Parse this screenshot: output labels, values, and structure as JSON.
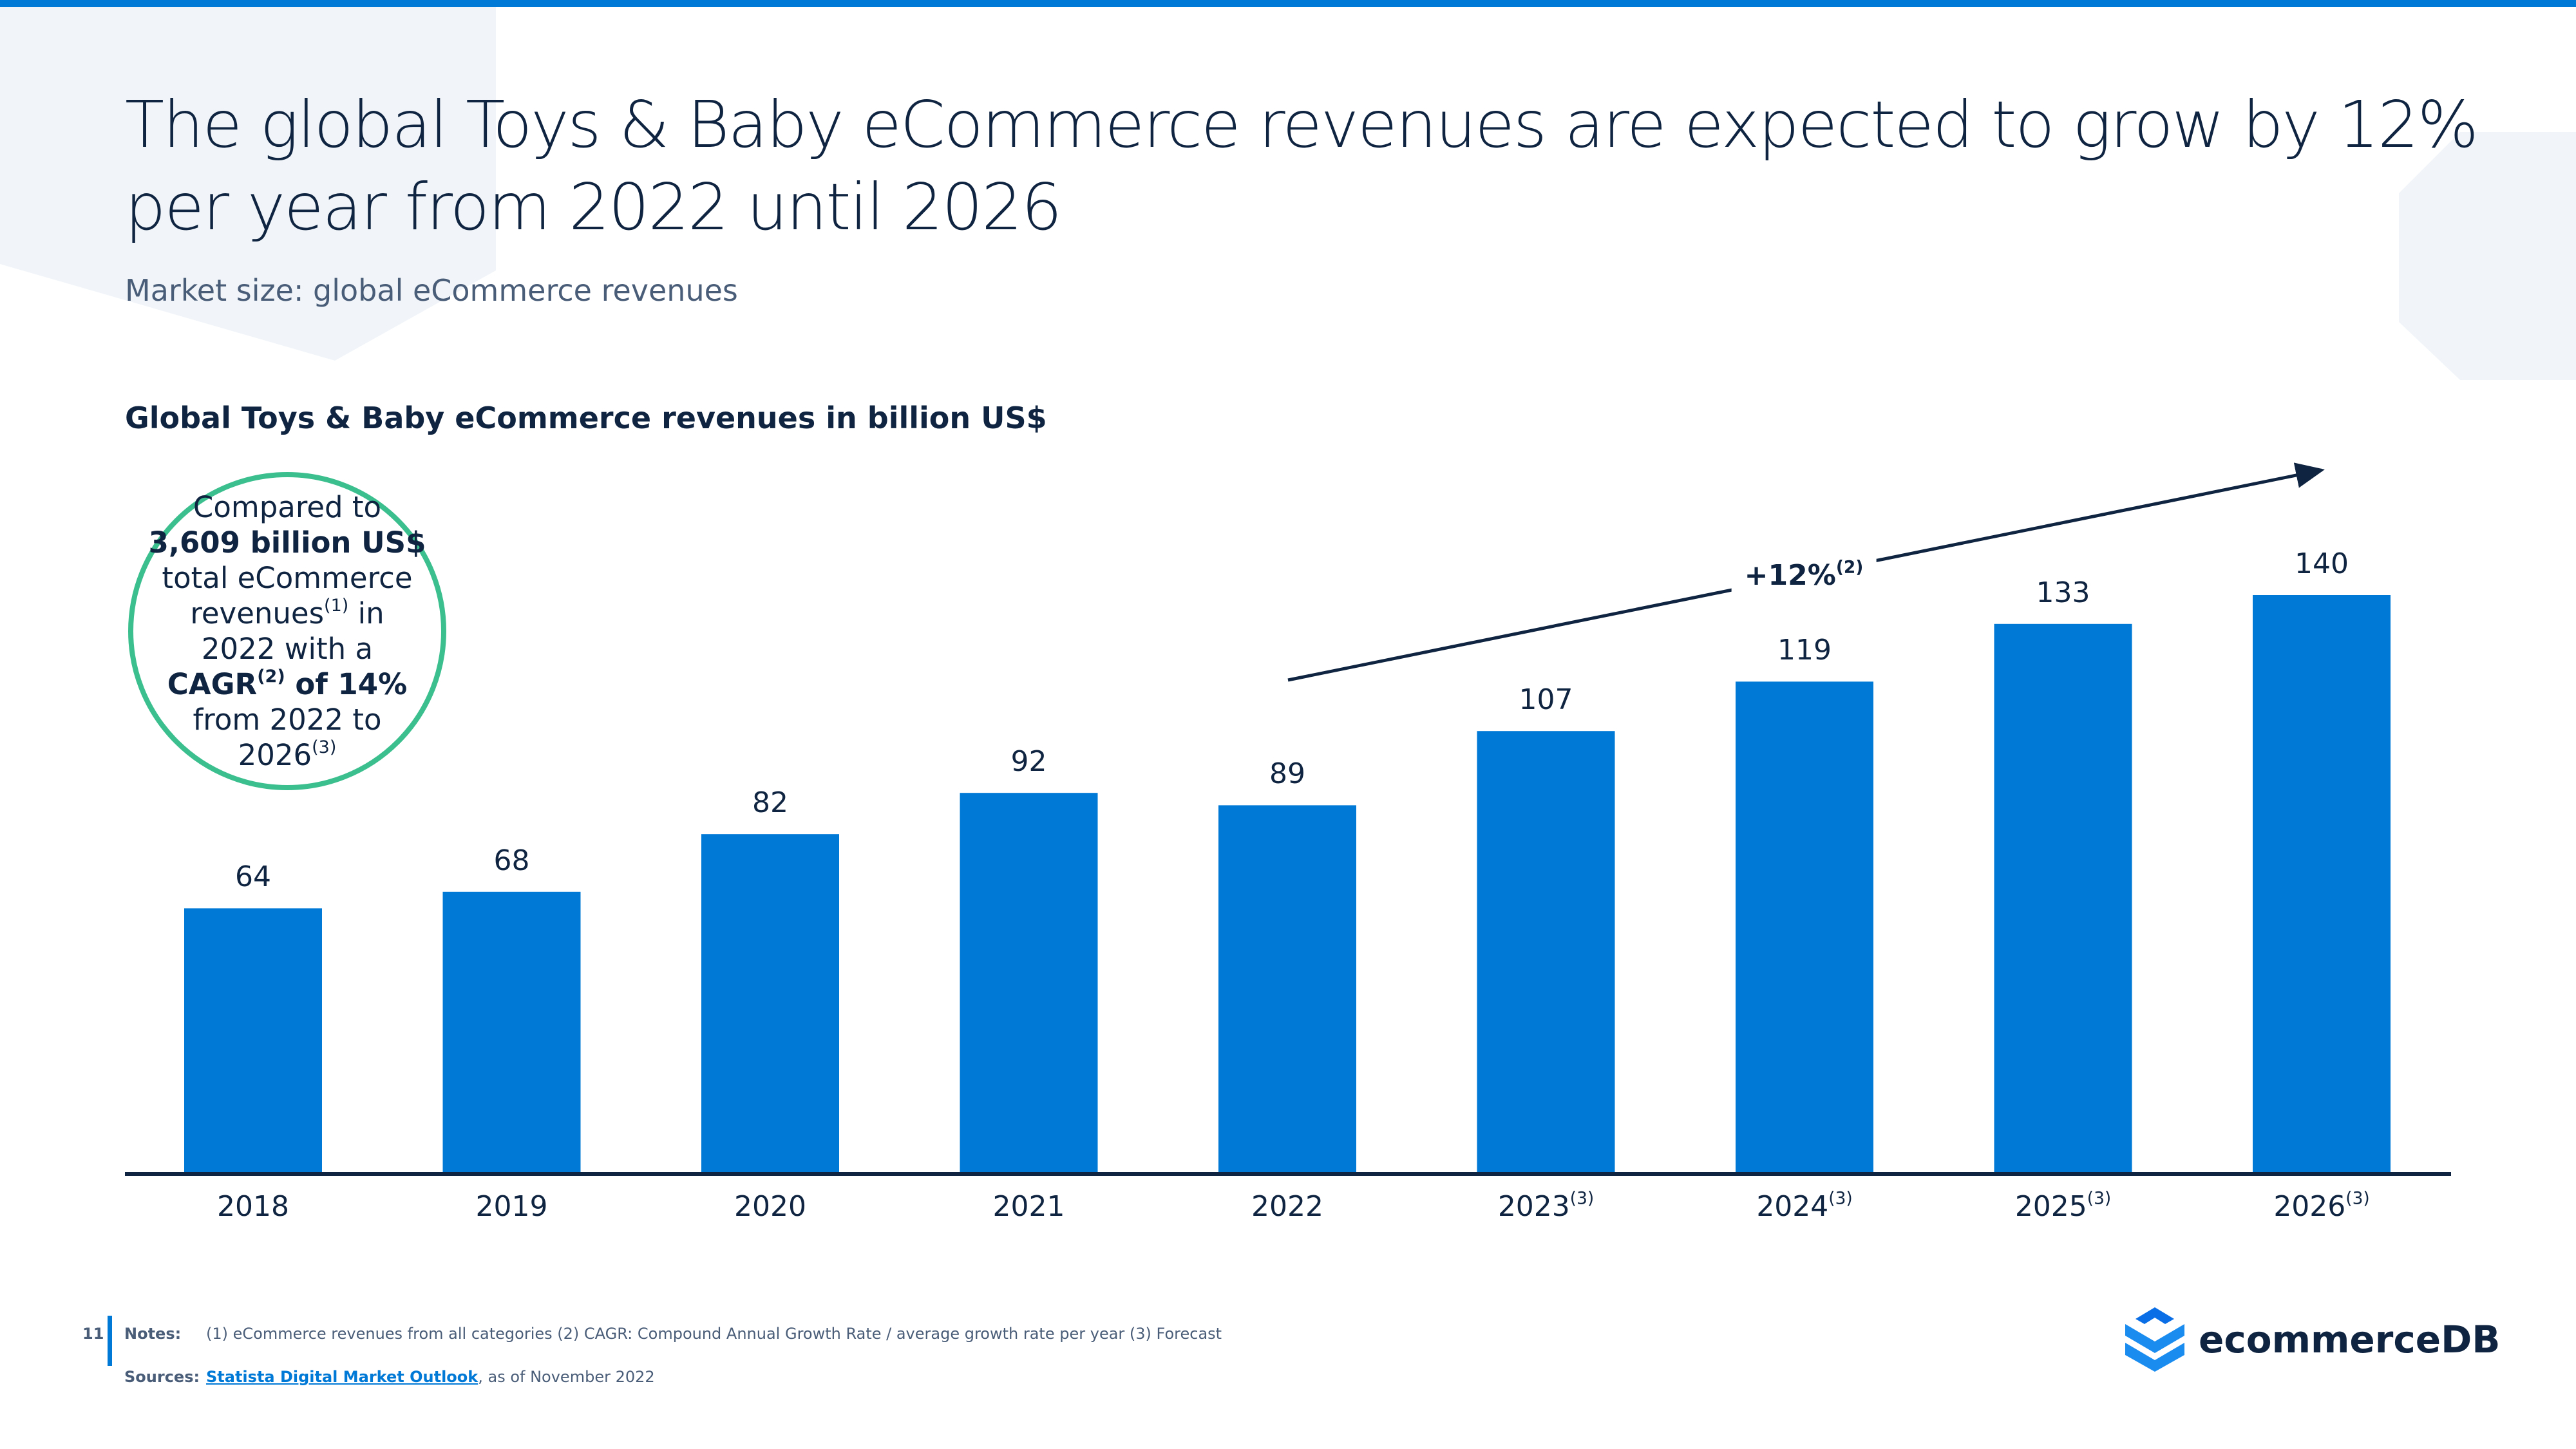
{
  "header": {
    "title": "The global Toys & Baby eCommerce revenues are expected to grow by 12% per year from 2022 until 2026",
    "subtitle": "Market size: global eCommerce revenues"
  },
  "callout": {
    "l1": "Compared to",
    "l2": "3,609 billion US$",
    "l3": "total eCommerce",
    "l4a": "revenues",
    "l4sup": "(1)",
    "l4b": " in",
    "l5": "2022 with a",
    "l6a": "CAGR",
    "l6sup": "(2)",
    "l6b": " of 14%",
    "l7": "from 2022 to",
    "l8a": "2026",
    "l8sup": "(3)"
  },
  "cagr": {
    "label": "+12%",
    "sup": "(2)"
  },
  "colors": {
    "bar": "#0078d6",
    "accent_green": "#3cbf8f",
    "text": "#0f2440",
    "top_bar": "#0078d6"
  },
  "chart_data": {
    "type": "bar",
    "title": "Global Toys & Baby eCommerce revenues in billion US$",
    "categories": [
      "2018",
      "2019",
      "2020",
      "2021",
      "2022",
      "2023",
      "2024",
      "2025",
      "2026"
    ],
    "category_sups": [
      "",
      "",
      "",
      "",
      "",
      "(3)",
      "(3)",
      "(3)",
      "(3)"
    ],
    "values": [
      64,
      68,
      82,
      92,
      89,
      107,
      119,
      133,
      140
    ],
    "data_labels": true,
    "grid": false,
    "ylim": [
      0,
      140
    ]
  },
  "footer": {
    "page": "11",
    "notes_label": "Notes:",
    "notes": "(1) eCommerce revenues from all categories (2) CAGR: Compound Annual Growth Rate / average growth rate per year (3) Forecast",
    "sources_label": "Sources:",
    "source_link": "Statista Digital Market Outlook",
    "source_rest": ", as of November 2022"
  },
  "logo": {
    "text": "ecommerceDB"
  }
}
